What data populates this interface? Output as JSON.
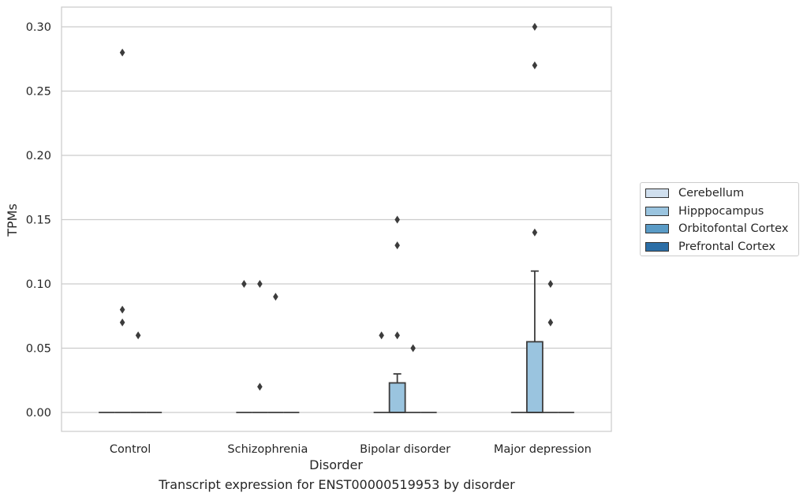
{
  "chart_data": {
    "type": "box",
    "title": "",
    "caption": "Transcript expression for ENST00000519953 by disorder",
    "xlabel": "Disorder",
    "ylabel": "TPMs",
    "ylim": [
      -0.015,
      0.315
    ],
    "yticks": [
      0.0,
      0.05,
      0.1,
      0.15,
      0.2,
      0.25,
      0.3
    ],
    "ytick_labels": [
      "0.00",
      "0.05",
      "0.10",
      "0.15",
      "0.20",
      "0.25",
      "0.30"
    ],
    "grid": true,
    "legend_position": "right",
    "categories": [
      "Control",
      "Schizophrenia",
      "Bipolar disorder",
      "Major depression"
    ],
    "series": [
      {
        "name": "Cerebellum",
        "color": "#d0dfee",
        "boxes": [
          {
            "min": 0,
            "q1": 0,
            "median": 0,
            "q3": 0,
            "max": 0,
            "outliers": []
          },
          {
            "min": 0,
            "q1": 0,
            "median": 0,
            "q3": 0,
            "max": 0,
            "outliers": [
              0.1
            ]
          },
          {
            "min": 0,
            "q1": 0,
            "median": 0,
            "q3": 0,
            "max": 0,
            "outliers": [
              0.06
            ]
          },
          {
            "min": 0,
            "q1": 0,
            "median": 0,
            "q3": 0,
            "max": 0,
            "outliers": []
          }
        ]
      },
      {
        "name": "Hipppocampus",
        "color": "#9ac4df",
        "boxes": [
          {
            "min": 0,
            "q1": 0,
            "median": 0,
            "q3": 0,
            "max": 0,
            "outliers": [
              0.28,
              0.08,
              0.07
            ]
          },
          {
            "min": 0,
            "q1": 0,
            "median": 0,
            "q3": 0,
            "max": 0,
            "outliers": [
              0.1,
              0.02
            ]
          },
          {
            "min": 0,
            "q1": 0,
            "median": 0,
            "q3": 0.023,
            "max": 0.03,
            "outliers": [
              0.15,
              0.13,
              0.06
            ]
          },
          {
            "min": 0,
            "q1": 0,
            "median": 0,
            "q3": 0.055,
            "max": 0.11,
            "outliers": [
              0.3,
              0.27,
              0.14
            ]
          }
        ]
      },
      {
        "name": "Orbitofontal Cortex",
        "color": "#5a9bc6",
        "boxes": [
          {
            "min": 0,
            "q1": 0,
            "median": 0,
            "q3": 0,
            "max": 0,
            "outliers": [
              0.06
            ]
          },
          {
            "min": 0,
            "q1": 0,
            "median": 0,
            "q3": 0,
            "max": 0,
            "outliers": [
              0.09
            ]
          },
          {
            "min": 0,
            "q1": 0,
            "median": 0,
            "q3": 0,
            "max": 0,
            "outliers": [
              0.05
            ]
          },
          {
            "min": 0,
            "q1": 0,
            "median": 0,
            "q3": 0,
            "max": 0,
            "outliers": [
              0.1,
              0.07
            ]
          }
        ]
      },
      {
        "name": "Prefrontal Cortex",
        "color": "#2b6ea6",
        "boxes": [
          {
            "min": 0,
            "q1": 0,
            "median": 0,
            "q3": 0,
            "max": 0,
            "outliers": []
          },
          {
            "min": 0,
            "q1": 0,
            "median": 0,
            "q3": 0,
            "max": 0,
            "outliers": []
          },
          {
            "min": 0,
            "q1": 0,
            "median": 0,
            "q3": 0,
            "max": 0,
            "outliers": []
          },
          {
            "min": 0,
            "q1": 0,
            "median": 0,
            "q3": 0,
            "max": 0,
            "outliers": []
          }
        ]
      }
    ]
  }
}
